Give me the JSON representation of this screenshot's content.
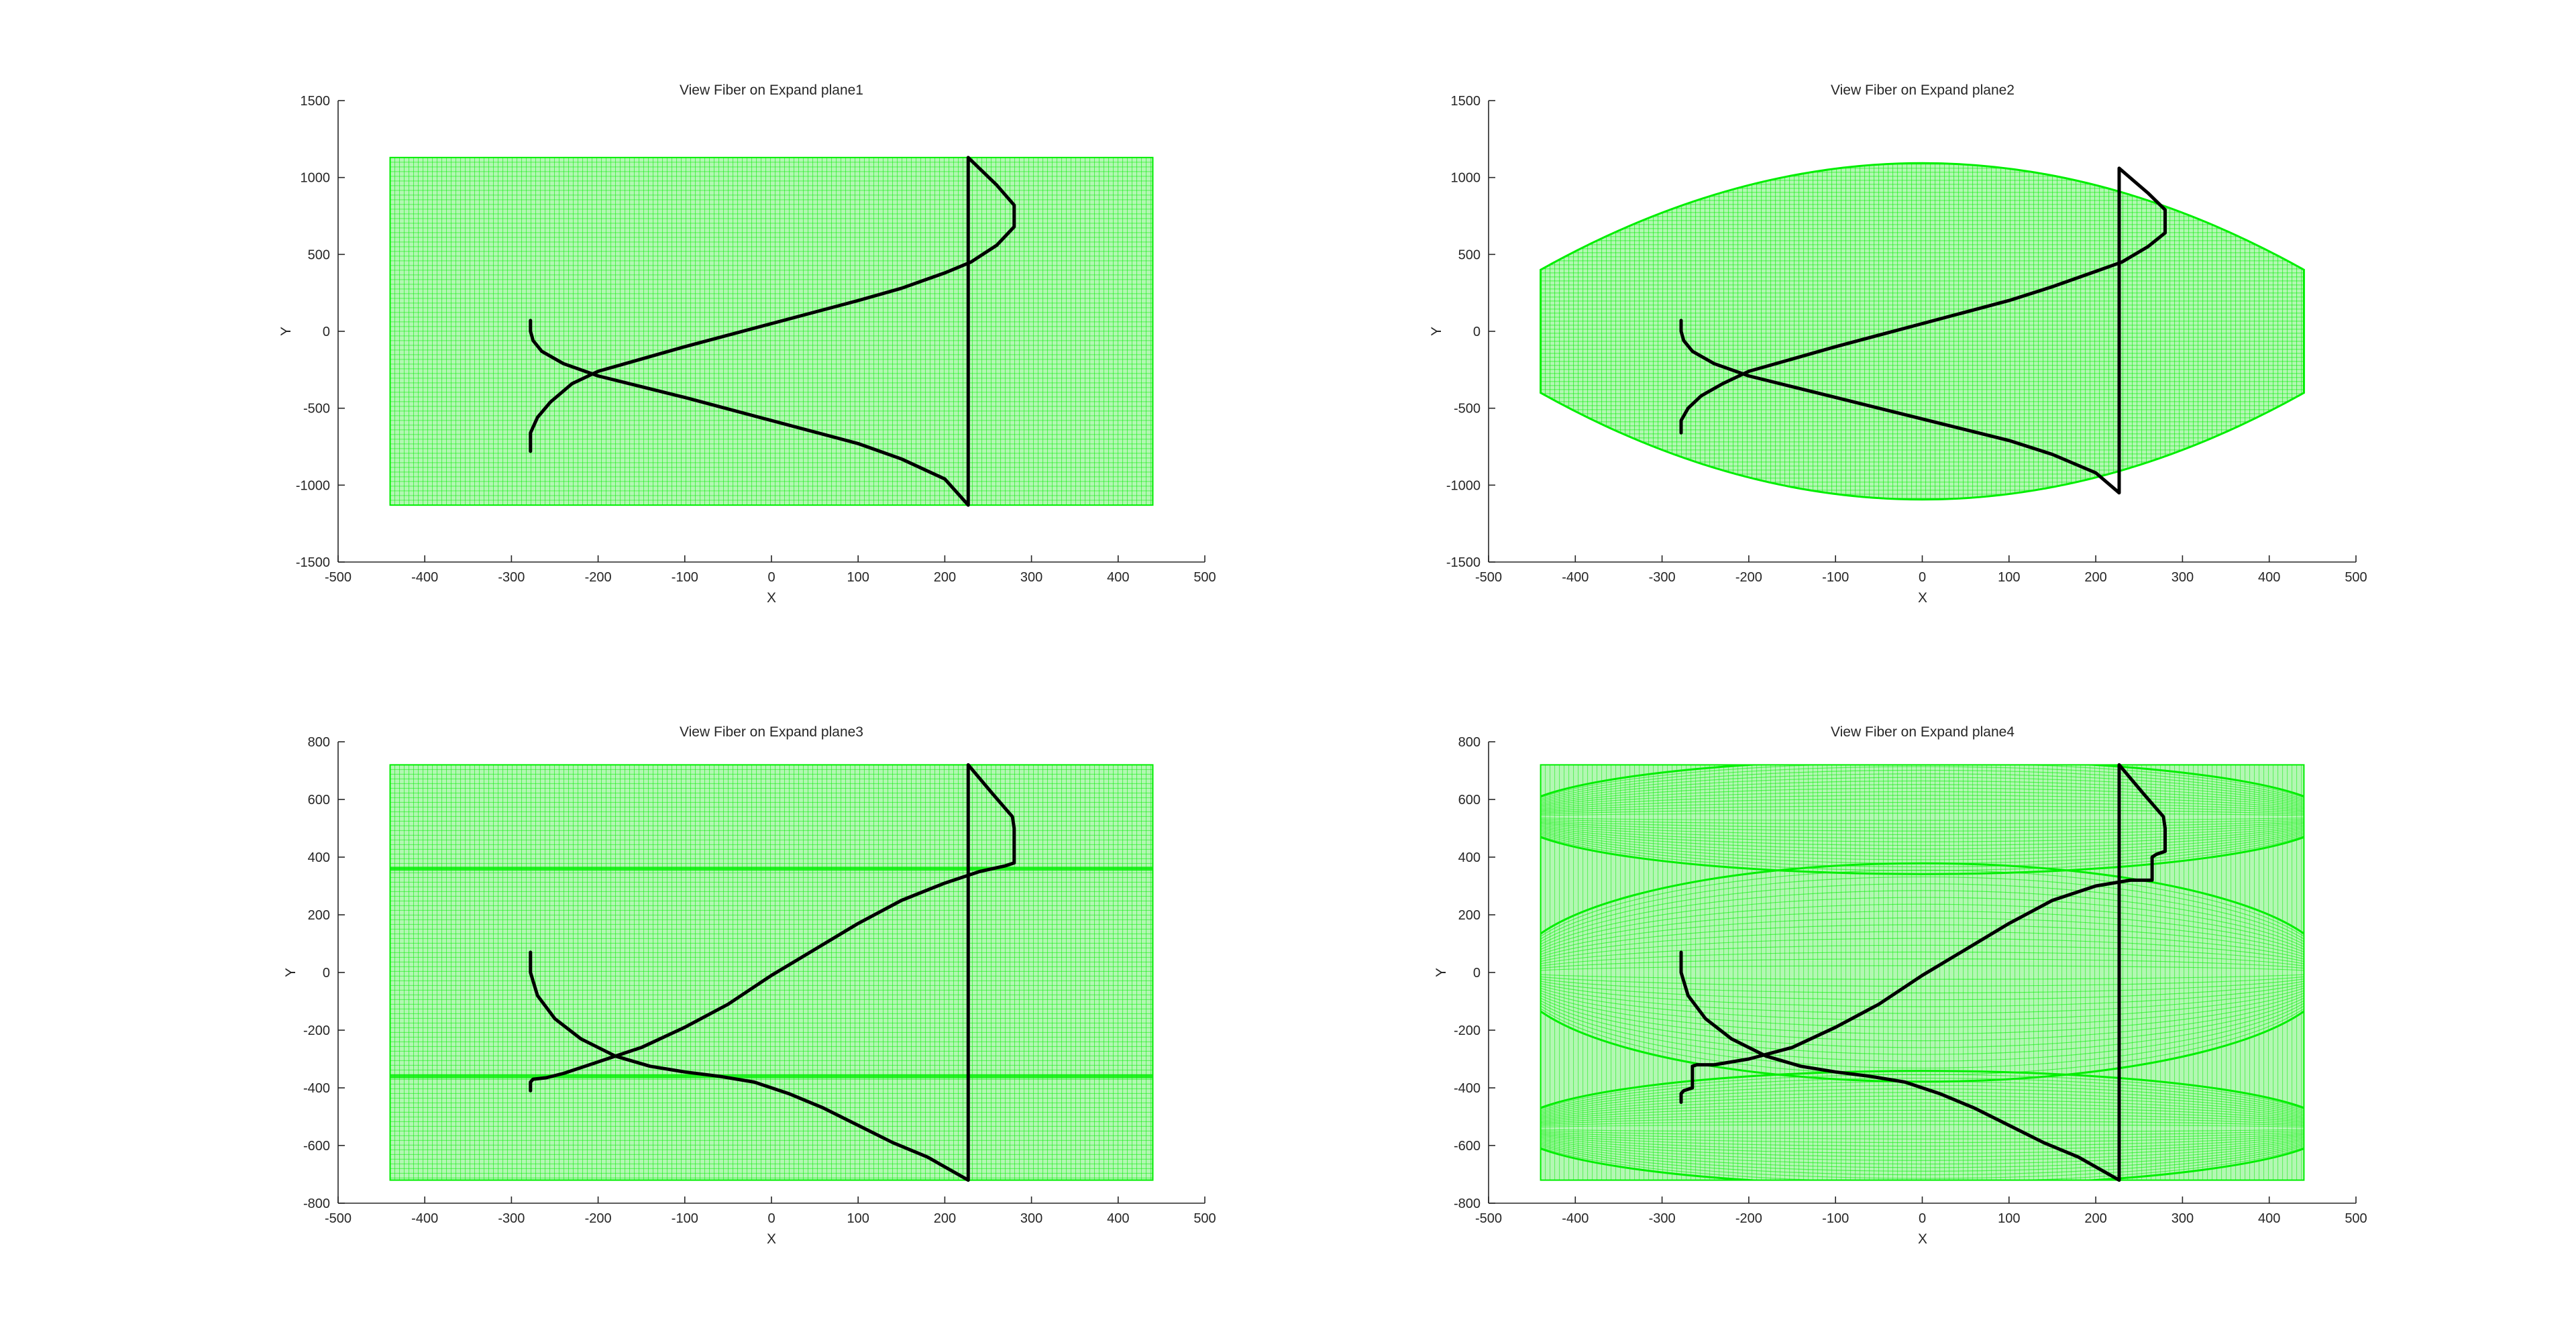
{
  "figure": {
    "background": "#ffffff",
    "surface_color": "#00ee00",
    "surface_fill": "#b3f7b3",
    "fiber_color": "#000000"
  },
  "chart_data": [
    {
      "type": "line",
      "title": "View Fiber on Expand plane1",
      "xlabel": "X",
      "ylabel": "Y",
      "xlim": [
        -500,
        500
      ],
      "ylim": [
        -1500,
        1500
      ],
      "xticks": [
        -500,
        -400,
        -300,
        -200,
        -100,
        0,
        100,
        200,
        300,
        400,
        500
      ],
      "yticks": [
        -1500,
        -1000,
        -500,
        0,
        500,
        1000,
        1500
      ],
      "grid": false,
      "surface": {
        "shape": "rectangle",
        "x_range": [
          -440,
          440
        ],
        "y_range": [
          -1130,
          1130
        ],
        "color": "#00ee00"
      },
      "series": [
        {
          "color": "#000000",
          "x": [
            -278,
            -278,
            -275,
            -265,
            -240,
            -200,
            -150,
            -100,
            0,
            100,
            150,
            200,
            227,
            227,
            260,
            280,
            280,
            260,
            230,
            200,
            150,
            100,
            0,
            -100,
            -150,
            -200,
            -230,
            -255,
            -270,
            -278,
            -278
          ],
          "y": [
            70,
            0,
            -60,
            -130,
            -210,
            -290,
            -360,
            -430,
            -580,
            -730,
            -830,
            -960,
            -1130,
            1130,
            950,
            820,
            680,
            560,
            450,
            380,
            280,
            200,
            50,
            -100,
            -180,
            -260,
            -340,
            -460,
            -560,
            -660,
            -780
          ]
        }
      ]
    },
    {
      "type": "line",
      "title": "View Fiber on Expand plane2",
      "xlabel": "X",
      "ylabel": "Y",
      "xlim": [
        -500,
        500
      ],
      "ylim": [
        -1500,
        1500
      ],
      "xticks": [
        -500,
        -400,
        -300,
        -200,
        -100,
        0,
        100,
        200,
        300,
        400,
        500
      ],
      "yticks": [
        -1500,
        -1000,
        -500,
        0,
        500,
        1000,
        1500
      ],
      "grid": false,
      "surface": {
        "shape": "ellipse",
        "x_range": [
          -440,
          440
        ],
        "y_range": [
          -1130,
          1130
        ],
        "edge_half_height": 400,
        "color": "#00ee00"
      },
      "series": [
        {
          "color": "#000000",
          "x": [
            -278,
            -278,
            -275,
            -265,
            -240,
            -200,
            -150,
            -100,
            0,
            100,
            150,
            200,
            227,
            227,
            260,
            280,
            280,
            260,
            230,
            200,
            150,
            100,
            0,
            -100,
            -150,
            -200,
            -230,
            -255,
            -270,
            -278,
            -278
          ],
          "y": [
            70,
            0,
            -60,
            -130,
            -210,
            -290,
            -360,
            -430,
            -570,
            -710,
            -800,
            -920,
            -1050,
            1060,
            900,
            790,
            640,
            550,
            450,
            390,
            290,
            200,
            50,
            -100,
            -180,
            -260,
            -340,
            -420,
            -500,
            -580,
            -660
          ]
        }
      ]
    },
    {
      "type": "line",
      "title": "View Fiber on Expand plane3",
      "xlabel": "X",
      "ylabel": "Y",
      "xlim": [
        -500,
        500
      ],
      "ylim": [
        -800,
        800
      ],
      "xticks": [
        -500,
        -400,
        -300,
        -200,
        -100,
        0,
        100,
        200,
        300,
        400,
        500
      ],
      "yticks": [
        -800,
        -600,
        -400,
        -200,
        0,
        200,
        400,
        600,
        800
      ],
      "grid": false,
      "surface": {
        "shape": "rectangle",
        "x_range": [
          -440,
          440
        ],
        "y_range": [
          -720,
          720
        ],
        "seams": [
          -360,
          360
        ],
        "color": "#00ee00"
      },
      "series": [
        {
          "color": "#000000",
          "x": [
            -278,
            -278,
            -270,
            -250,
            -220,
            -180,
            -140,
            -100,
            -60,
            -20,
            20,
            60,
            100,
            140,
            180,
            227,
            227,
            255,
            278,
            280,
            280,
            270,
            240,
            200,
            150,
            100,
            50,
            0,
            -50,
            -100,
            -150,
            -200,
            -240,
            -260,
            -275,
            -278,
            -278
          ],
          "y": [
            70,
            0,
            -80,
            -160,
            -230,
            -290,
            -325,
            -345,
            -360,
            -380,
            -420,
            -470,
            -530,
            -590,
            -640,
            -720,
            720,
            620,
            540,
            500,
            380,
            370,
            350,
            310,
            250,
            170,
            80,
            -10,
            -110,
            -190,
            -260,
            -310,
            -350,
            -365,
            -370,
            -380,
            -410
          ]
        }
      ]
    },
    {
      "type": "line",
      "title": "View Fiber on Expand plane4",
      "xlabel": "X",
      "ylabel": "Y",
      "xlim": [
        -500,
        500
      ],
      "ylim": [
        -800,
        800
      ],
      "xticks": [
        -500,
        -400,
        -300,
        -200,
        -100,
        0,
        100,
        200,
        300,
        400,
        500
      ],
      "yticks": [
        -800,
        -600,
        -400,
        -200,
        0,
        200,
        400,
        600,
        800
      ],
      "grid": false,
      "surface": {
        "shape": "stacked-ellipses",
        "x_range": [
          -440,
          440
        ],
        "y_range": [
          -720,
          720
        ],
        "lanes": [
          [
            360,
            720
          ],
          [
            -360,
            360
          ],
          [
            -720,
            -360
          ]
        ],
        "edge_half_height": 80,
        "color": "#00ee00"
      },
      "series": [
        {
          "color": "#000000",
          "x": [
            -278,
            -278,
            -270,
            -250,
            -220,
            -180,
            -140,
            -100,
            -60,
            -20,
            20,
            60,
            100,
            140,
            180,
            227,
            227,
            255,
            278,
            280,
            280,
            270,
            265,
            265,
            240,
            200,
            150,
            100,
            50,
            0,
            -50,
            -100,
            -150,
            -200,
            -240,
            -260,
            -265,
            -265,
            -275,
            -278,
            -278
          ],
          "y": [
            70,
            0,
            -80,
            -160,
            -230,
            -290,
            -325,
            -345,
            -360,
            -380,
            -420,
            -470,
            -530,
            -590,
            -640,
            -720,
            720,
            620,
            540,
            500,
            420,
            410,
            400,
            320,
            320,
            300,
            250,
            170,
            80,
            -10,
            -110,
            -190,
            -260,
            -300,
            -320,
            -320,
            -325,
            -400,
            -410,
            -420,
            -450
          ]
        }
      ]
    }
  ]
}
